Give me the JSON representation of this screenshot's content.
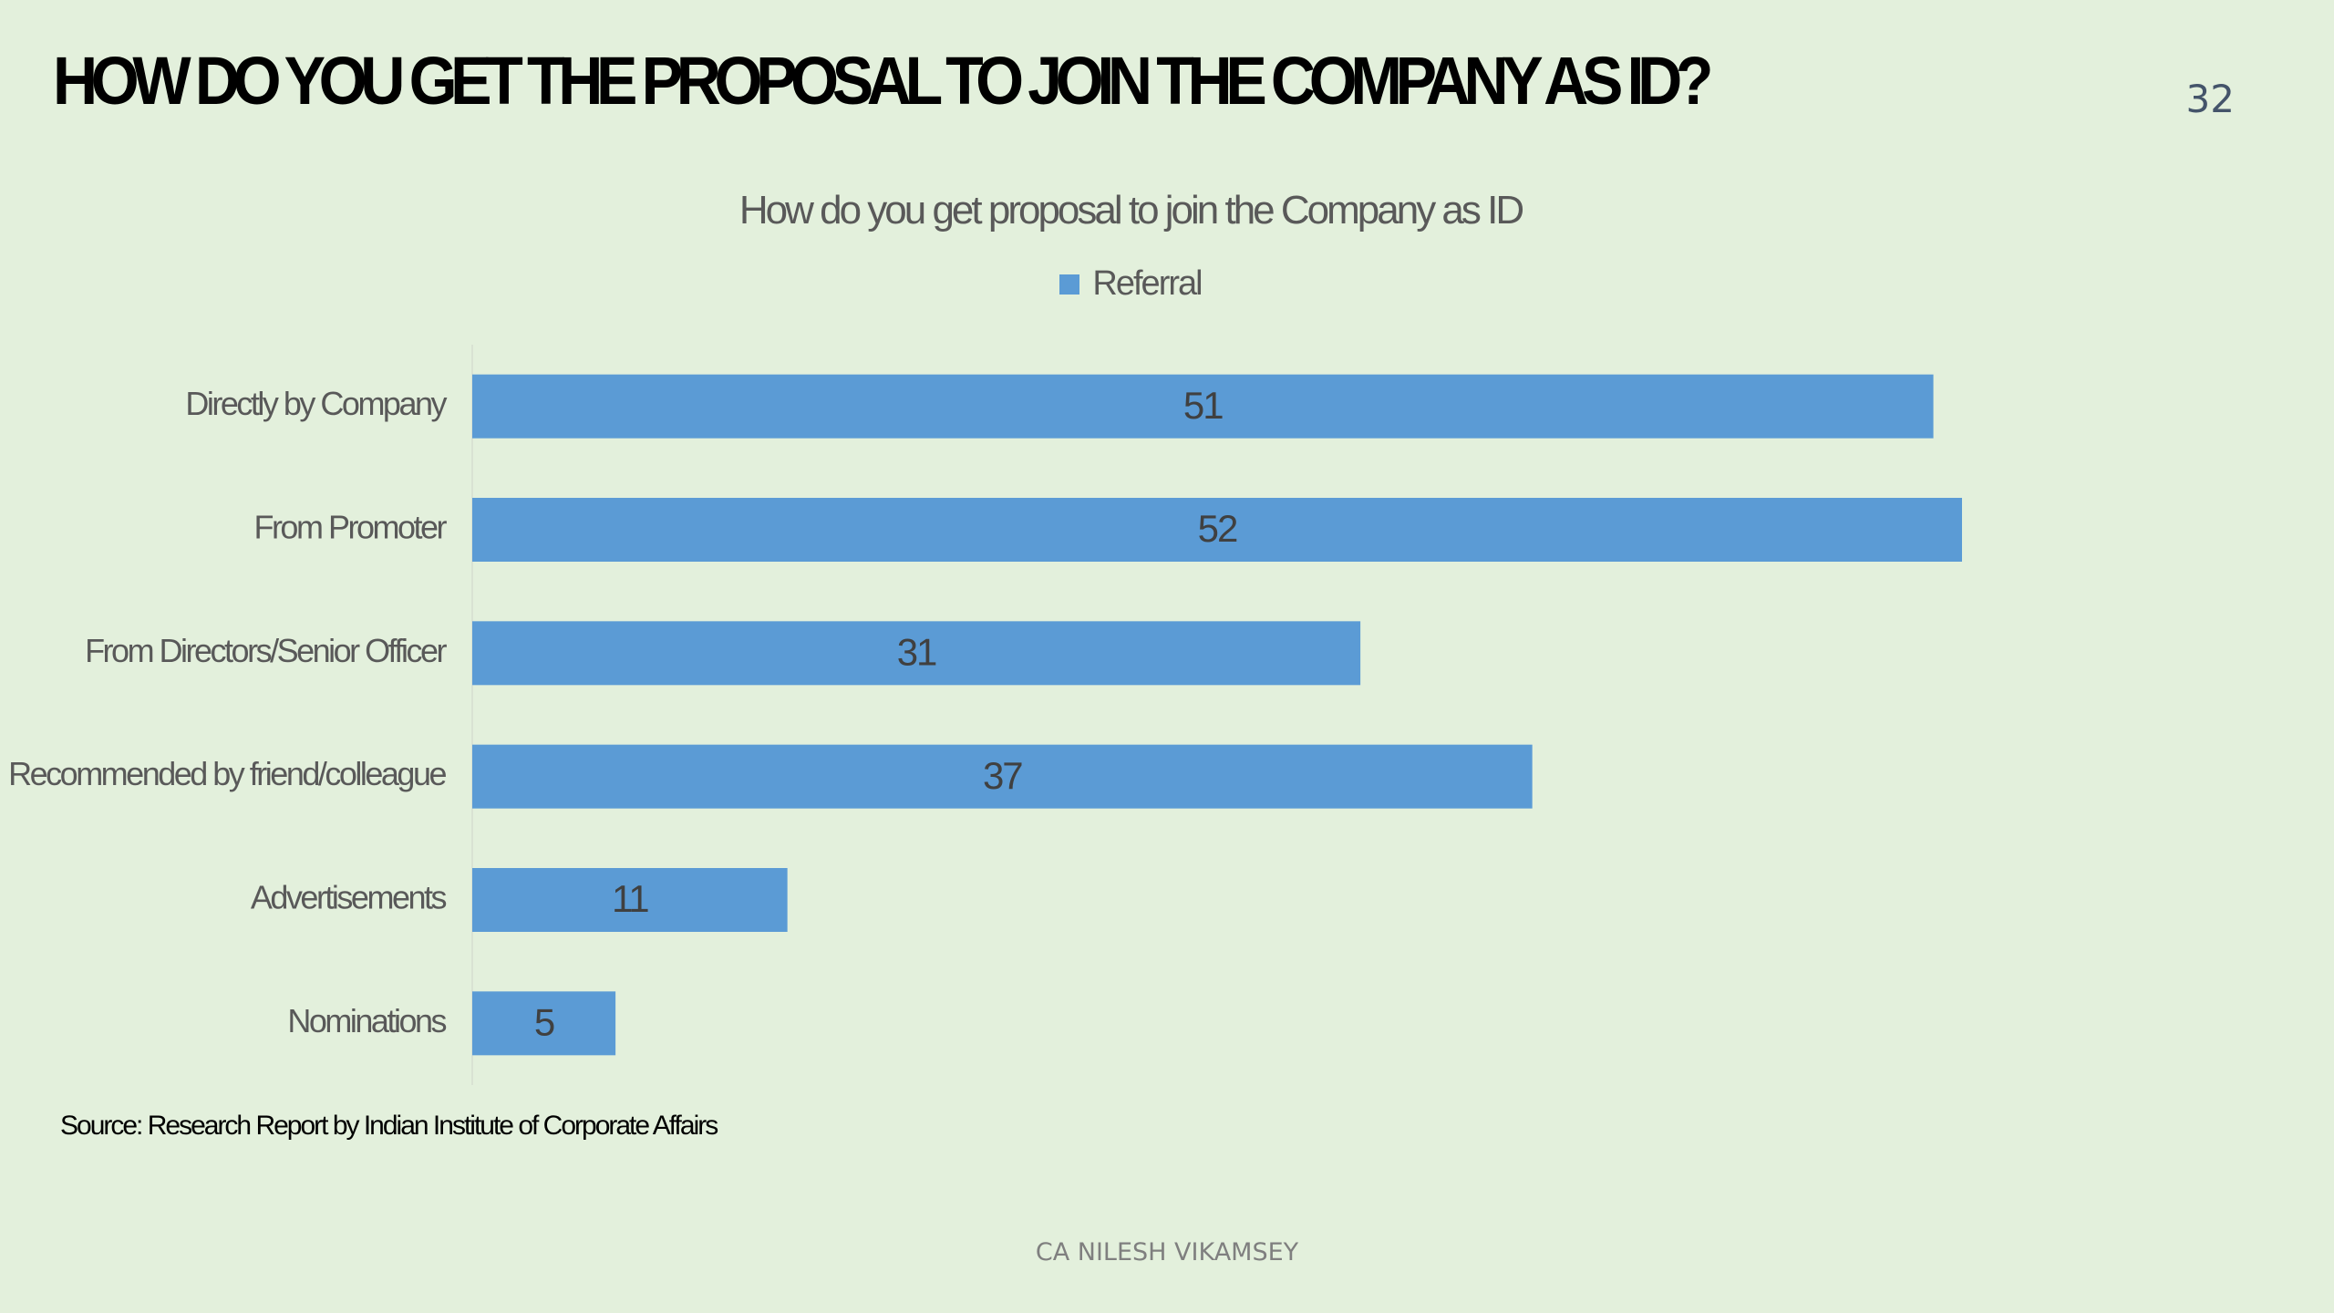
{
  "slide": {
    "title": "HOW DO YOU GET THE PROPOSAL TO JOIN THE COMPANY AS ID?",
    "page_number": "32",
    "source": "Source: Research Report by Indian Institute of Corporate Affairs",
    "footer": "CA NILESH VIKAMSEY"
  },
  "chart_data": {
    "type": "bar",
    "orientation": "horizontal",
    "title": "How do you get proposal to join the Company as ID",
    "categories": [
      "Directly by Company",
      "From Promoter",
      "From Directors/Senior Officer",
      "Recommended by friend/colleague",
      "Advertisements",
      "Nominations"
    ],
    "series": [
      {
        "name": "Referral",
        "values": [
          51,
          52,
          31,
          37,
          11,
          5
        ],
        "color": "#5b9bd5"
      }
    ],
    "xlim": [
      0,
      52
    ],
    "grid": false,
    "legend": "top-center",
    "data_labels": "center"
  }
}
